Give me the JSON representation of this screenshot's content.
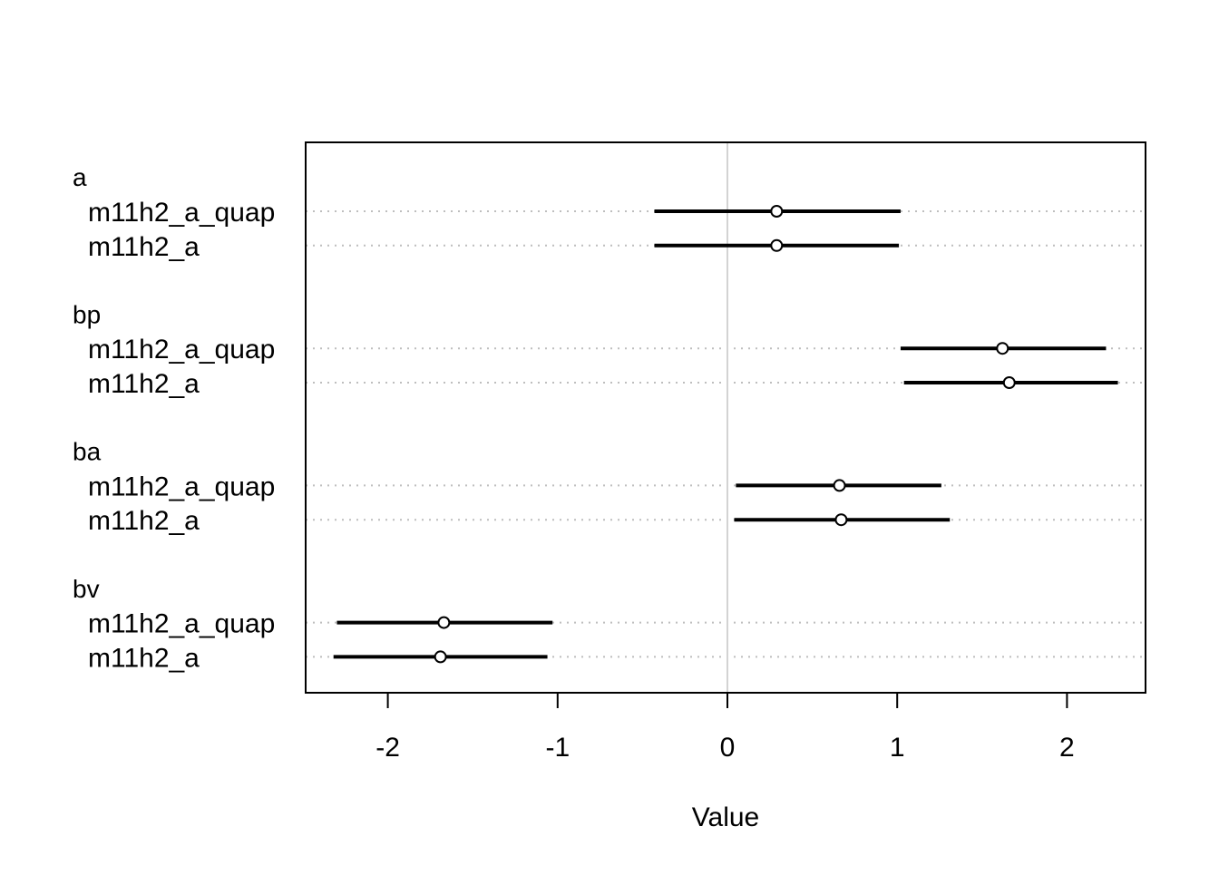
{
  "chart_data": {
    "type": "dot-interval",
    "title": "",
    "xlabel": "Value",
    "ylabel": "",
    "xlim": [
      -2.5,
      2.45
    ],
    "x_ticks": [
      -2,
      -1,
      0,
      1,
      2
    ],
    "x_tick_labels": [
      "-2",
      "-1",
      "0",
      "1",
      "2"
    ],
    "reference_line_x": 0,
    "grid": "dotted horizontal guide per row",
    "groups": [
      {
        "name": "a",
        "rows": [
          {
            "label": "m11h2_a_quap",
            "mean": 0.29,
            "lower": -0.43,
            "upper": 1.02
          },
          {
            "label": "m11h2_a",
            "mean": 0.29,
            "lower": -0.43,
            "upper": 1.01
          }
        ]
      },
      {
        "name": "bp",
        "rows": [
          {
            "label": "m11h2_a_quap",
            "mean": 1.62,
            "lower": 1.02,
            "upper": 2.23
          },
          {
            "label": "m11h2_a",
            "mean": 1.66,
            "lower": 1.04,
            "upper": 2.3
          }
        ]
      },
      {
        "name": "ba",
        "rows": [
          {
            "label": "m11h2_a_quap",
            "mean": 0.66,
            "lower": 0.05,
            "upper": 1.26
          },
          {
            "label": "m11h2_a",
            "mean": 0.67,
            "lower": 0.04,
            "upper": 1.31
          }
        ]
      },
      {
        "name": "bv",
        "rows": [
          {
            "label": "m11h2_a_quap",
            "mean": -1.67,
            "lower": -2.3,
            "upper": -1.03
          },
          {
            "label": "m11h2_a",
            "mean": -1.69,
            "lower": -2.32,
            "upper": -1.06
          }
        ]
      }
    ],
    "colors": {
      "interval": "#000000",
      "guide": "#bebebe",
      "zero_line": "#d3d3d3",
      "frame": "#000000"
    }
  }
}
